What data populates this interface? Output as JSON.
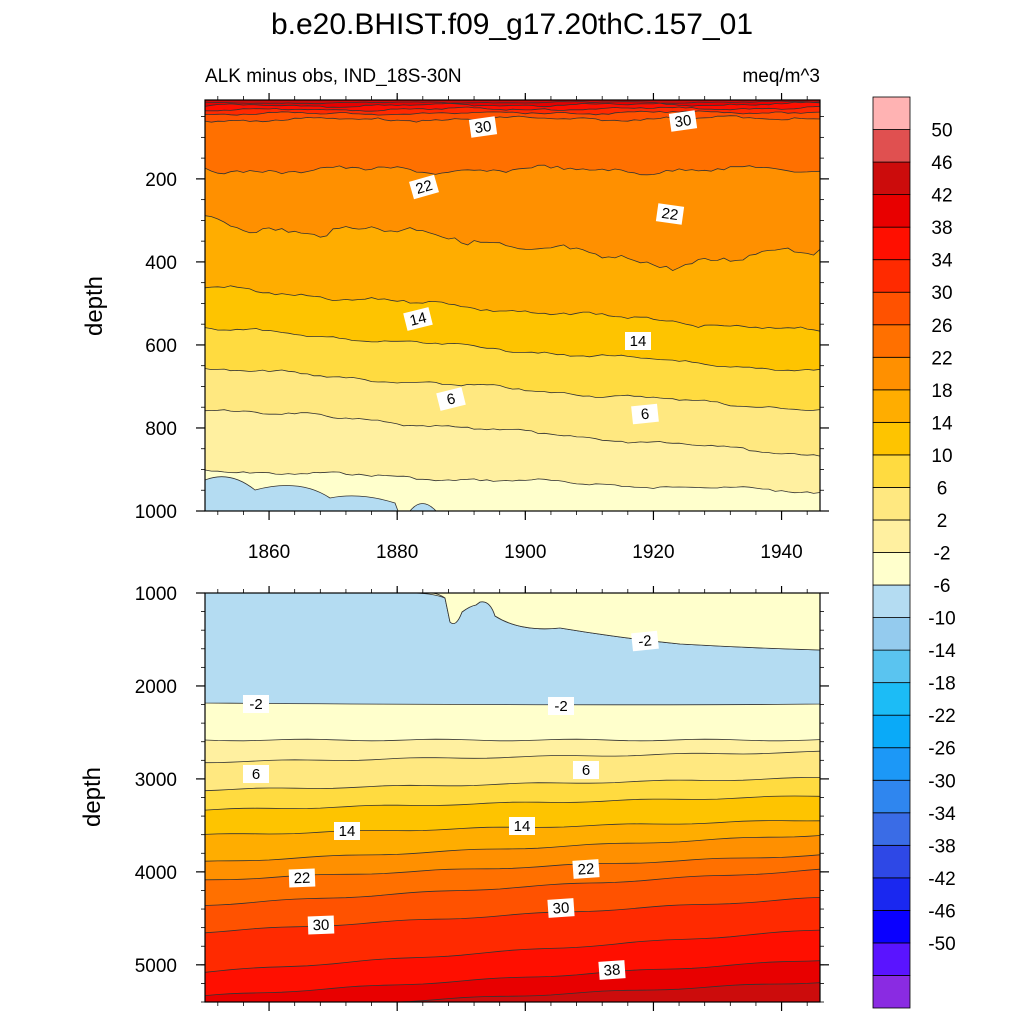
{
  "title": "b.e20.BHIST.f09_g17.20thC.157_01",
  "colors": {
    "levels_colors": [
      "#8a2be2",
      "#5a14ff",
      "#0a00ff",
      "#1a28f0",
      "#2e48e6",
      "#3a6ce6",
      "#2f86ef",
      "#1c98f7",
      "#0aaaf8",
      "#1cbcf6",
      "#5ac4f0",
      "#94cbee",
      "#b4dcf2",
      "#ffffcc",
      "#fff0a0",
      "#ffe880",
      "#ffdb40",
      "#fec400",
      "#ffad00",
      "#ff9000",
      "#ff7000",
      "#ff5200",
      "#ff2a00",
      "#ff0f00",
      "#e80000",
      "#cc0c0c",
      "#e05050",
      "#ffb3b3"
    ],
    "contour_line": "#333333"
  },
  "colorbar": {
    "labels": [
      "50",
      "46",
      "42",
      "38",
      "34",
      "30",
      "26",
      "22",
      "18",
      "14",
      "10",
      "6",
      "2",
      "-2",
      "-6",
      "-10",
      "-14",
      "-18",
      "-22",
      "-26",
      "-30",
      "-34",
      "-38",
      "-42",
      "-46",
      "-50"
    ]
  },
  "chart_data": [
    {
      "type": "heatmap",
      "left_label": "ALK minus obs, IND_18S-30N",
      "right_label": "meq/m^3",
      "ylabel": "depth",
      "xlim": [
        1850,
        1946
      ],
      "ylim": [
        1000,
        10
      ],
      "xticks": [
        "1860",
        "1880",
        "1900",
        "1920",
        "1940"
      ],
      "yticks": [
        "200",
        "400",
        "600",
        "800",
        "1000"
      ],
      "contour_labels": [
        "30",
        "30",
        "22",
        "22",
        "14",
        "14",
        "6",
        "6"
      ]
    },
    {
      "type": "heatmap",
      "ylabel": "depth",
      "xlim": [
        1850,
        1946
      ],
      "ylim": [
        5400,
        1000
      ],
      "yticks": [
        "1000",
        "2000",
        "3000",
        "4000",
        "5000"
      ],
      "contour_labels": [
        "-2",
        "-2",
        "-2",
        "6",
        "6",
        "14",
        "14",
        "22",
        "22",
        "30",
        "30",
        "38"
      ]
    }
  ]
}
